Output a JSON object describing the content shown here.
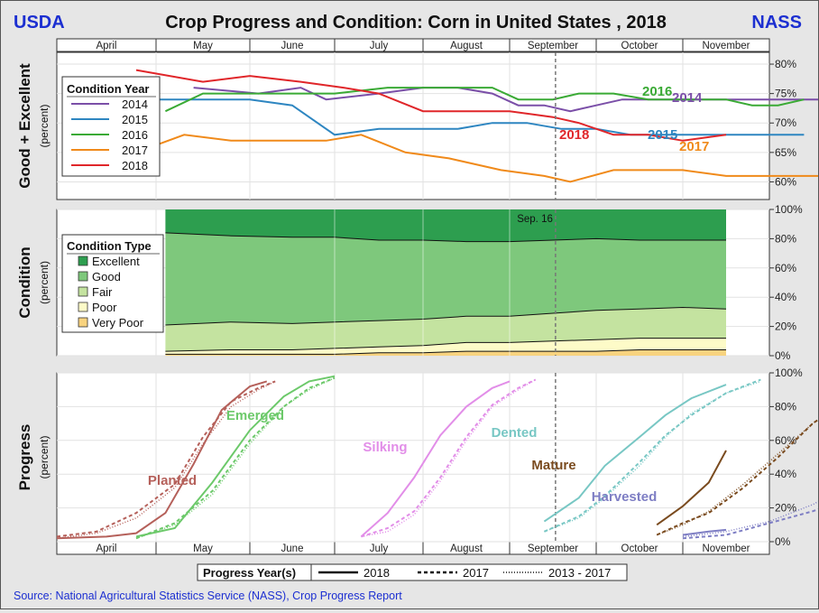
{
  "header": {
    "left_logo": "USDA",
    "right_logo": "NASS",
    "title": "Crop Progress and Condition: Corn in United States , 2018"
  },
  "months": [
    "April",
    "May",
    "June",
    "July",
    "August",
    "September",
    "October",
    "November"
  ],
  "source": "Source: National Agricultural Statistics Service (NASS), Crop Progress Report",
  "colors": {
    "c2014": "#7b4fa8",
    "c2015": "#2e86c1",
    "c2016": "#3aaa35",
    "c2017": "#f08a1a",
    "c2018": "#e0262a",
    "excellent": "#2d9e4f",
    "good": "#7ec87c",
    "fair": "#c4e3a0",
    "poor": "#fdfbc8",
    "very_poor": "#f8d37f",
    "planted": "#b5605a",
    "emerged": "#6cc96a",
    "silking": "#e28ee8",
    "dented": "#78c7c4",
    "mature": "#7a4b1f",
    "harvested": "#7e7ec4"
  },
  "chart_data": [
    {
      "id": "good_excellent",
      "type": "line",
      "title": "",
      "ylabel": "Good + Excellent",
      "ylabel2": "(percent)",
      "ylim": [
        57,
        82
      ],
      "yticks": [
        60,
        65,
        70,
        75,
        80
      ],
      "ytick_labels": [
        "60%",
        "65%",
        "70%",
        "75%",
        "80%"
      ],
      "legend_title": "Condition Year",
      "legend": [
        "2014",
        "2015",
        "2016",
        "2017",
        "2018"
      ],
      "series": [
        {
          "name": "2014",
          "color_key": "c2014",
          "label": "2014",
          "x": [
            5.4,
            6.1,
            6.6,
            6.9,
            7.5,
            8.0,
            8.4,
            8.8,
            9.1,
            9.4,
            9.7,
            10.0,
            10.3,
            10.6,
            11.2,
            11.6,
            12.0,
            12.4,
            13.0
          ],
          "y": [
            76,
            75,
            76,
            74,
            75,
            76,
            76,
            75,
            73,
            73,
            72,
            73,
            74,
            74,
            74,
            74,
            74,
            74,
            74
          ]
        },
        {
          "name": "2015",
          "color_key": "c2015",
          "label": "2015",
          "x": [
            4.8,
            5.5,
            6.0,
            6.5,
            7.0,
            7.5,
            8.0,
            8.4,
            8.8,
            9.2,
            9.6,
            10.0,
            10.4,
            11.0,
            11.6,
            12.0,
            12.4
          ],
          "y": [
            74,
            74,
            74,
            73,
            68,
            69,
            69,
            69,
            70,
            70,
            69,
            69,
            68,
            68,
            68,
            68,
            68
          ]
        },
        {
          "name": "2016",
          "color_key": "c2016",
          "label": "2016",
          "x": [
            5.1,
            5.5,
            6.0,
            6.5,
            7.0,
            7.6,
            8.0,
            8.4,
            8.8,
            9.1,
            9.5,
            9.8,
            10.2,
            10.6,
            11.0,
            11.5,
            11.8,
            12.1,
            12.4
          ],
          "y": [
            72,
            75,
            75,
            75,
            75,
            76,
            76,
            76,
            76,
            74,
            74,
            75,
            75,
            74,
            74,
            74,
            73,
            73,
            74
          ]
        },
        {
          "name": "2017",
          "color_key": "c2017",
          "label": "2017",
          "x": [
            4.8,
            5.3,
            5.8,
            6.3,
            6.9,
            7.3,
            7.8,
            8.3,
            8.9,
            9.4,
            9.7,
            10.2,
            10.6,
            11.0,
            11.5,
            12.0,
            12.4,
            12.8,
            13.2
          ],
          "y": [
            65,
            68,
            67,
            67,
            67,
            68,
            65,
            64,
            62,
            61,
            60,
            62,
            62,
            62,
            61,
            61,
            61,
            61,
            63
          ]
        },
        {
          "name": "2018",
          "color_key": "c2018",
          "label": "2018",
          "x": [
            4.8,
            5.5,
            6.0,
            6.6,
            7.1,
            7.5,
            8.0,
            8.5,
            9.0,
            9.5,
            9.8,
            10.2,
            10.6,
            11.0,
            11.5
          ],
          "y": [
            79,
            77,
            78,
            77,
            76,
            75,
            72,
            72,
            72,
            71,
            70,
            68,
            68,
            67,
            68
          ]
        }
      ]
    },
    {
      "id": "condition",
      "type": "area",
      "ylabel": "Condition",
      "ylabel2": "(percent)",
      "ylim": [
        0,
        100
      ],
      "yticks": [
        0,
        20,
        40,
        60,
        80,
        100
      ],
      "ytick_labels": [
        "0%",
        "20%",
        "40%",
        "60%",
        "80%",
        "100%"
      ],
      "legend_title": "Condition Type",
      "legend": [
        "Excellent",
        "Good",
        "Fair",
        "Poor",
        "Very Poor"
      ],
      "annotation": "Sep. 16",
      "x": [
        5.1,
        5.8,
        6.5,
        7.0,
        7.5,
        8.0,
        8.5,
        9.0,
        9.5,
        10.0,
        10.5,
        11.0,
        11.5
      ],
      "stack_tops": {
        "very_poor": [
          1,
          1,
          1,
          1,
          2,
          2,
          3,
          3,
          3,
          3,
          4,
          4,
          4
        ],
        "poor": [
          3,
          4,
          4,
          5,
          6,
          7,
          9,
          9,
          10,
          11,
          12,
          12,
          12
        ],
        "fair": [
          21,
          23,
          22,
          23,
          24,
          25,
          27,
          27,
          29,
          31,
          32,
          33,
          32
        ],
        "good": [
          84,
          82,
          81,
          81,
          79,
          79,
          78,
          78,
          79,
          80,
          79,
          79,
          79
        ],
        "excellent": [
          100,
          100,
          100,
          100,
          100,
          100,
          100,
          100,
          100,
          100,
          100,
          100,
          100
        ]
      }
    },
    {
      "id": "progress",
      "type": "line",
      "ylabel": "Progress",
      "ylabel2": "(percent)",
      "ylim": [
        0,
        100
      ],
      "yticks": [
        0,
        20,
        40,
        60,
        80,
        100
      ],
      "ytick_labels": [
        "0%",
        "20%",
        "40%",
        "60%",
        "80%",
        "100%"
      ],
      "stages": [
        {
          "name": "Planted",
          "color_key": "planted",
          "x2018": [
            4.0,
            4.5,
            4.8,
            5.1,
            5.4,
            5.7,
            6.0,
            6.2
          ],
          "y2018": [
            2,
            3,
            5,
            17,
            46,
            78,
            92,
            95
          ],
          "x2017": [
            4.0,
            4.4,
            4.8,
            5.2,
            5.5,
            5.8,
            6.1,
            6.3
          ],
          "y2017": [
            3,
            6,
            17,
            34,
            62,
            83,
            91,
            95
          ],
          "xavg": [
            4.0,
            4.4,
            4.8,
            5.2,
            5.5,
            5.8,
            6.1,
            6.3
          ],
          "yavg": [
            2,
            5,
            14,
            32,
            58,
            80,
            90,
            95
          ]
        },
        {
          "name": "Emerged",
          "color_key": "emerged",
          "x2018": [
            4.8,
            5.2,
            5.6,
            6.0,
            6.4,
            6.7,
            7.0
          ],
          "y2018": [
            3,
            8,
            35,
            66,
            86,
            95,
            98
          ],
          "x2017": [
            4.8,
            5.2,
            5.6,
            6.0,
            6.4,
            6.7,
            7.0
          ],
          "y2017": [
            2,
            11,
            30,
            60,
            80,
            91,
            97
          ],
          "xavg": [
            4.8,
            5.2,
            5.6,
            6.0,
            6.4,
            6.7,
            7.0
          ],
          "yavg": [
            2,
            10,
            28,
            58,
            80,
            90,
            97
          ]
        },
        {
          "name": "Silking",
          "color_key": "silking",
          "x2018": [
            7.3,
            7.6,
            7.9,
            8.2,
            8.5,
            8.8,
            9.0
          ],
          "y2018": [
            3,
            17,
            38,
            63,
            80,
            91,
            95
          ],
          "x2017": [
            7.3,
            7.6,
            7.9,
            8.2,
            8.5,
            8.8,
            9.1,
            9.3
          ],
          "y2017": [
            3,
            8,
            18,
            38,
            62,
            81,
            91,
            96
          ],
          "xavg": [
            7.3,
            7.6,
            7.9,
            8.2,
            8.5,
            8.8,
            9.1,
            9.3
          ],
          "yavg": [
            3,
            6,
            16,
            36,
            60,
            80,
            90,
            96
          ]
        },
        {
          "name": "Dented",
          "color_key": "dented",
          "x2018": [
            9.4,
            9.8,
            10.1,
            10.5,
            10.8,
            11.1,
            11.5
          ],
          "y2018": [
            12,
            26,
            45,
            62,
            75,
            85,
            93
          ],
          "x2017": [
            9.4,
            9.8,
            10.1,
            10.5,
            10.8,
            11.1,
            11.5,
            11.9
          ],
          "y2017": [
            6,
            15,
            27,
            47,
            63,
            75,
            88,
            96
          ],
          "xavg": [
            9.4,
            9.8,
            10.1,
            10.5,
            10.8,
            11.1,
            11.5,
            11.9
          ],
          "yavg": [
            6,
            14,
            26,
            45,
            62,
            76,
            88,
            95
          ]
        },
        {
          "name": "Mature",
          "color_key": "mature",
          "x2018": [
            10.7,
            11.0,
            11.3,
            11.5
          ],
          "y2018": [
            10,
            21,
            35,
            54
          ],
          "x2017": [
            10.7,
            11.0,
            11.3,
            11.7,
            12.1,
            12.5,
            12.9,
            13.2
          ],
          "y2017": [
            4,
            11,
            17,
            32,
            50,
            70,
            84,
            95
          ],
          "xavg": [
            10.7,
            11.0,
            11.3,
            11.7,
            12.1,
            12.5,
            12.9,
            13.2
          ],
          "yavg": [
            4,
            10,
            18,
            34,
            52,
            70,
            84,
            94
          ]
        },
        {
          "name": "Harvested",
          "color_key": "harvested",
          "x2018": [
            11.0,
            11.3,
            11.5
          ],
          "y2018": [
            4,
            6,
            7
          ],
          "x2017": [
            11.0,
            11.5,
            12.0,
            12.5,
            13.0,
            13.5,
            14.0,
            14.5,
            15.0
          ],
          "y2017": [
            2,
            4,
            11,
            18,
            27,
            40,
            65,
            85,
            95
          ],
          "xavg": [
            11.0,
            11.5,
            12.0,
            12.5,
            13.0,
            13.5,
            14.0
          ],
          "yavg": [
            3,
            6,
            12,
            22,
            36,
            56,
            77
          ]
        }
      ]
    }
  ],
  "progress_legend": {
    "title": "Progress Year(s)",
    "items": [
      "2018",
      "2017",
      "2013 - 2017"
    ]
  }
}
